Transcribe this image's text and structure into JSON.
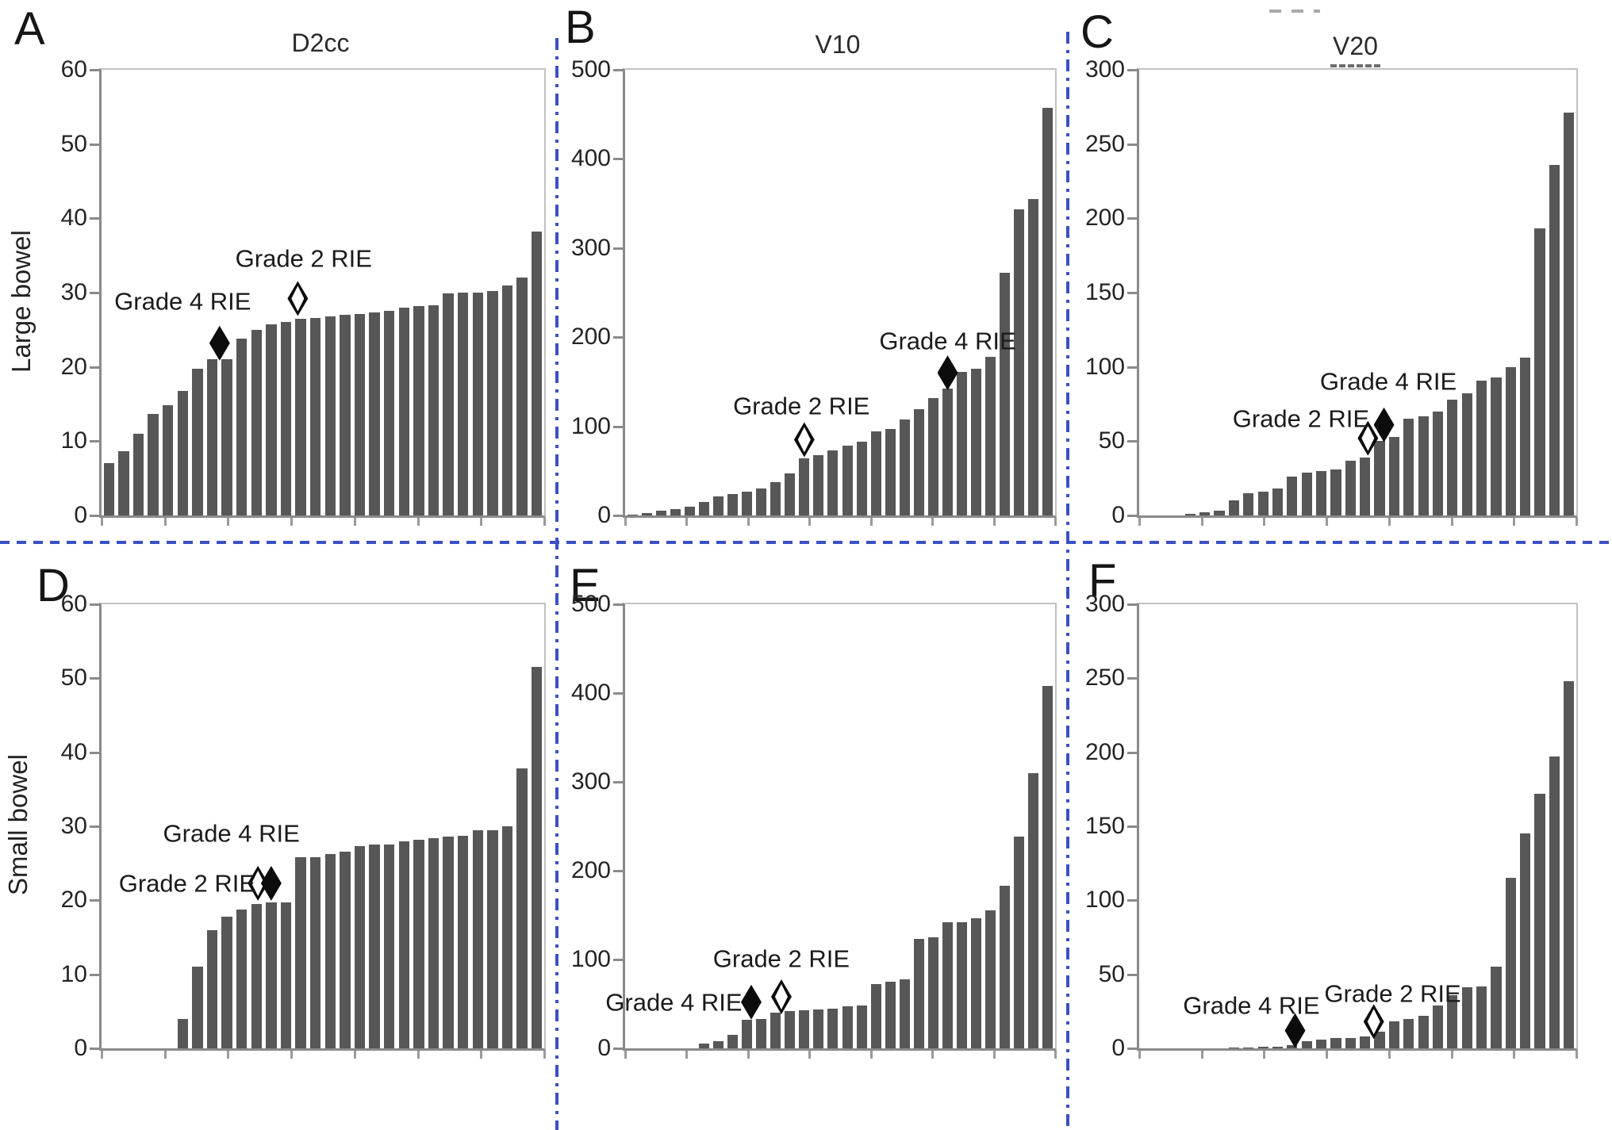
{
  "figure": {
    "panels": [
      {
        "letter": "A",
        "title": "D2cc",
        "organ": "Large bowel"
      },
      {
        "letter": "B",
        "title": "V10",
        "organ": "Large bowel"
      },
      {
        "letter": "C",
        "title": "V20",
        "organ": "Large bowel"
      },
      {
        "letter": "D",
        "organ": "Small bowel"
      },
      {
        "letter": "E",
        "organ": "Small bowel"
      },
      {
        "letter": "F",
        "organ": "Small bowel"
      }
    ],
    "row_labels": [
      "Large bowel",
      "Small bowel"
    ],
    "column_titles": [
      "D2cc",
      "V10",
      "V20"
    ],
    "legend": {
      "filled_diamond": "Grade 4 RIE",
      "open_diamond": "Grade 2 RIE"
    },
    "colors": {
      "bar": "#575757",
      "divider_blue": "#3a50c4",
      "axis": "#8a8a8a",
      "frame": "#c2c2c2",
      "marker_black": "#0c0c0c"
    }
  },
  "chart_data": [
    {
      "panel": "A",
      "type": "bar",
      "title": "D2cc",
      "organ": "Large bowel",
      "ylim": [
        0,
        60
      ],
      "yticks": [
        0,
        10,
        20,
        30,
        40,
        50,
        60
      ],
      "grid": false,
      "values": [
        7,
        8.6,
        11,
        13.7,
        14.8,
        16.8,
        19.8,
        21,
        21,
        23.8,
        25,
        25.7,
        26,
        26.5,
        26.6,
        26.8,
        27,
        27.1,
        27.3,
        27.5,
        28,
        28.2,
        28.3,
        29.9,
        30,
        30,
        30.2,
        31,
        32,
        38.2
      ],
      "markers": [
        {
          "label": "Grade 4 RIE",
          "style": "filled-diamond",
          "bar_slot": 7.5,
          "value": 23.2,
          "label_slot": 5.0,
          "label_value": 28.8
        },
        {
          "label": "Grade 2 RIE",
          "style": "open-diamond",
          "bar_slot": 12.8,
          "value": 29.2,
          "label_slot": 13.2,
          "label_value": 34.6
        }
      ]
    },
    {
      "panel": "B",
      "type": "bar",
      "title": "V10",
      "organ": "Large bowel",
      "ylim": [
        0,
        500
      ],
      "yticks": [
        0,
        100,
        200,
        300,
        400,
        500
      ],
      "grid": false,
      "values": [
        1,
        3,
        5,
        7,
        10,
        15,
        21,
        24,
        27,
        30,
        37,
        47,
        64,
        68,
        73,
        78,
        83,
        94,
        97,
        108,
        119,
        132,
        142,
        161,
        165,
        178,
        272,
        343,
        355,
        457
      ],
      "markers": [
        {
          "label": "Grade 2 RIE",
          "style": "open-diamond",
          "bar_slot": 12.0,
          "value": 85,
          "label_slot": 11.8,
          "label_value": 123
        },
        {
          "label": "Grade 4 RIE",
          "style": "filled-diamond",
          "bar_slot": 22.0,
          "value": 160,
          "label_slot": 22.0,
          "label_value": 196
        }
      ]
    },
    {
      "panel": "C",
      "type": "bar",
      "title": "V20",
      "organ": "Large bowel",
      "ylim": [
        0,
        300
      ],
      "yticks": [
        0,
        50,
        100,
        150,
        200,
        250,
        300
      ],
      "grid": false,
      "values": [
        0,
        0,
        0,
        1,
        2,
        3,
        10,
        15,
        16,
        18,
        26,
        29,
        30,
        31,
        37,
        39,
        50,
        53,
        65,
        67,
        70,
        78,
        82,
        91,
        93,
        100,
        106,
        193,
        236,
        271
      ],
      "markers": [
        {
          "label": "Grade 2 RIE",
          "style": "open-diamond",
          "bar_slot": 15.2,
          "value": 52,
          "label_slot": 10.6,
          "label_value": 65
        },
        {
          "label": "Grade 4 RIE",
          "style": "filled-diamond",
          "bar_slot": 16.3,
          "value": 61,
          "label_slot": 16.6,
          "label_value": 90
        }
      ]
    },
    {
      "panel": "D",
      "type": "bar",
      "title": "",
      "organ": "Small bowel",
      "ylim": [
        0,
        60
      ],
      "yticks": [
        0,
        10,
        20,
        30,
        40,
        50,
        60
      ],
      "grid": false,
      "values": [
        0,
        0,
        0,
        0,
        0,
        4,
        11,
        16,
        17.8,
        18.7,
        19.5,
        19.7,
        19.7,
        25.8,
        25.8,
        26.2,
        26.6,
        27.3,
        27.5,
        27.5,
        28,
        28.2,
        28.4,
        28.6,
        28.7,
        29.5,
        29.5,
        30,
        37.8,
        51.5
      ],
      "markers": [
        {
          "label": "Grade 2 RIE",
          "style": "open-diamond",
          "bar_slot": 10.1,
          "value": 22.3,
          "label_slot": 5.3,
          "label_value": 22.3
        },
        {
          "label": "Grade 4 RIE",
          "style": "filled-diamond",
          "bar_slot": 11.0,
          "value": 22.3,
          "label_slot": 8.3,
          "label_value": 29.0
        }
      ]
    },
    {
      "panel": "E",
      "type": "bar",
      "title": "",
      "organ": "Small bowel",
      "ylim": [
        0,
        500
      ],
      "yticks": [
        0,
        100,
        200,
        300,
        400,
        500
      ],
      "grid": false,
      "values": [
        0,
        0,
        0,
        0,
        0,
        5,
        8,
        15,
        32,
        33,
        40,
        42,
        43,
        44,
        45,
        47,
        48,
        72,
        75,
        78,
        123,
        125,
        142,
        142,
        146,
        155,
        183,
        238,
        310,
        408
      ],
      "markers": [
        {
          "label": "Grade 4 RIE",
          "style": "filled-diamond",
          "bar_slot": 8.3,
          "value": 52,
          "label_slot": 2.9,
          "label_value": 52
        },
        {
          "label": "Grade 2 RIE",
          "style": "open-diamond",
          "bar_slot": 10.4,
          "value": 58,
          "label_slot": 10.4,
          "label_value": 101
        }
      ]
    },
    {
      "panel": "F",
      "type": "bar",
      "title": "",
      "organ": "Small bowel",
      "ylim": [
        0,
        300
      ],
      "yticks": [
        0,
        50,
        100,
        150,
        200,
        250,
        300
      ],
      "grid": false,
      "values": [
        0,
        0,
        0,
        0,
        0,
        0,
        0.5,
        0.5,
        1,
        1,
        2,
        5,
        6,
        7,
        7,
        8,
        11,
        18,
        20,
        22,
        29,
        36,
        41,
        42,
        55,
        115,
        145,
        172,
        197,
        248
      ],
      "markers": [
        {
          "label": "Grade 4 RIE",
          "style": "filled-diamond",
          "bar_slot": 10.2,
          "value": 12,
          "label_slot": 7.2,
          "label_value": 29
        },
        {
          "label": "Grade 2 RIE",
          "style": "open-diamond",
          "bar_slot": 15.6,
          "value": 18,
          "label_slot": 16.9,
          "label_value": 37
        }
      ]
    }
  ]
}
